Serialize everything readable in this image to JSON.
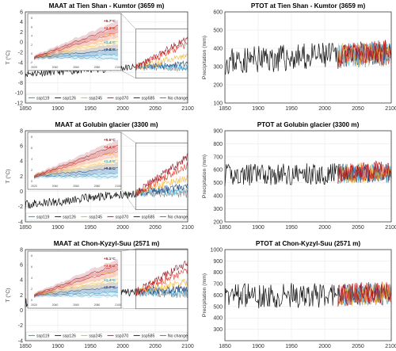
{
  "figure": {
    "panel_count": 6
  },
  "chart_data": [
    {
      "type": "line",
      "title": "MAAT at Tien Shan - Kumtor (3659 m)",
      "xlabel": "",
      "ylabel": "T (°C)",
      "xlim": [
        1850,
        2100
      ],
      "ylim": [
        -12,
        6
      ],
      "xticks": [
        1850,
        1900,
        1950,
        2000,
        2050,
        2100
      ],
      "yticks": [
        -12,
        -10,
        -8,
        -6,
        -4,
        -2,
        0,
        2,
        4,
        6
      ],
      "grid": true,
      "observed": {
        "start": 1850,
        "end": 2020,
        "level_start": -6.2,
        "level_end": -4.9,
        "variability": 0.7,
        "seed": 11
      },
      "series": [
        {
          "name": "ssp119",
          "color": "#29abe2",
          "end_value": -4.9
        },
        {
          "name": "ssp126",
          "color": "#1f3b73",
          "end_value": -4.3
        },
        {
          "name": "ssp245",
          "color": "#f7b731",
          "end_value": -2.6
        },
        {
          "name": "ssp370",
          "color": "#e0301e",
          "end_value": -0.4
        },
        {
          "name": "ssp585",
          "color": "#9b111e",
          "end_value": 0.8
        },
        {
          "name": "No change",
          "color": "#7d7d7d",
          "end_value": -5.2
        }
      ],
      "inset": {
        "annotations": [
          "+5.7°C",
          "+4.2°C",
          "+2.6°C",
          "+1.4°C",
          "+0.8°C"
        ],
        "annotation_colors": [
          "#9b111e",
          "#e0301e",
          "#f7b731",
          "#29abe2",
          "#1f3b73"
        ],
        "xticks": [
          "2020",
          "2040",
          "2060",
          "2080",
          "2100"
        ],
        "yticks": [
          "8",
          "6",
          "4",
          "2",
          "0",
          "-2"
        ],
        "ylabel": "T (°C)"
      },
      "legend_placement": "bottom"
    },
    {
      "type": "line",
      "title": "PTOT at Tien Shan - Kumtor (3659 m)",
      "xlabel": "",
      "ylabel": "Precipitation (mm)",
      "xlim": [
        1850,
        2100
      ],
      "ylim": [
        100,
        600
      ],
      "xticks": [
        1850,
        1900,
        1950,
        2000,
        2050,
        2100
      ],
      "yticks": [
        100,
        200,
        300,
        400,
        500,
        600
      ],
      "grid": true,
      "observed": {
        "start": 1850,
        "end": 2020,
        "level_start": 330,
        "level_end": 360,
        "variability": 75,
        "seed": 23
      },
      "series": [
        {
          "name": "ssp119",
          "color": "#29abe2",
          "end_value": 370
        },
        {
          "name": "ssp126",
          "color": "#1f3b73",
          "end_value": 370
        },
        {
          "name": "ssp245",
          "color": "#f7b731",
          "end_value": 375
        },
        {
          "name": "ssp370",
          "color": "#e0301e",
          "end_value": 380
        },
        {
          "name": "ssp585",
          "color": "#9b111e",
          "end_value": 385
        },
        {
          "name": "No change",
          "color": "#7d7d7d",
          "end_value": 365
        }
      ]
    },
    {
      "type": "line",
      "title": "MAAT at Golubin glacier (3300 m)",
      "xlabel": "",
      "ylabel": "T (°C)",
      "xlim": [
        1850,
        2100
      ],
      "ylim": [
        -4,
        8
      ],
      "xticks": [
        1850,
        1900,
        1950,
        2000,
        2050,
        2100
      ],
      "yticks": [
        -4,
        -2,
        0,
        2,
        4,
        6,
        8
      ],
      "grid": true,
      "observed": {
        "start": 1850,
        "end": 2020,
        "level_start": -1.8,
        "level_end": -0.2,
        "variability": 0.6,
        "seed": 37
      },
      "series": [
        {
          "name": "ssp119",
          "color": "#29abe2",
          "end_value": 0.2
        },
        {
          "name": "ssp126",
          "color": "#1f3b73",
          "end_value": 0.6
        },
        {
          "name": "ssp245",
          "color": "#f7b731",
          "end_value": 1.8
        },
        {
          "name": "ssp370",
          "color": "#e0301e",
          "end_value": 3.5
        },
        {
          "name": "ssp585",
          "color": "#9b111e",
          "end_value": 4.6
        },
        {
          "name": "No change",
          "color": "#7d7d7d",
          "end_value": -0.3
        }
      ],
      "inset": {
        "annotations": [
          "+5.5°C",
          "+4.4°C",
          "+2.8°C",
          "+1.4°C",
          "+0.8°C"
        ],
        "annotation_colors": [
          "#9b111e",
          "#e0301e",
          "#f7b731",
          "#29abe2",
          "#1f3b73"
        ],
        "xticks": [
          "2020",
          "2040",
          "2060",
          "2080",
          "2100"
        ],
        "yticks": [
          "8",
          "6",
          "4",
          "2",
          "0"
        ],
        "ylabel": "T (°C)"
      },
      "legend_placement": "bottom"
    },
    {
      "type": "line",
      "title": "PTOT at Golubin glacier (3300 m)",
      "xlabel": "",
      "ylabel": "Precipitation (mm)",
      "xlim": [
        1850,
        2100
      ],
      "ylim": [
        200,
        900
      ],
      "xticks": [
        1850,
        1900,
        1950,
        2000,
        2050,
        2100
      ],
      "yticks": [
        200,
        300,
        400,
        500,
        600,
        700,
        800,
        900
      ],
      "grid": true,
      "observed": {
        "start": 1850,
        "end": 2020,
        "level_start": 560,
        "level_end": 570,
        "variability": 85,
        "seed": 41
      },
      "series": [
        {
          "name": "ssp119",
          "color": "#29abe2",
          "end_value": 575
        },
        {
          "name": "ssp126",
          "color": "#1f3b73",
          "end_value": 575
        },
        {
          "name": "ssp245",
          "color": "#f7b731",
          "end_value": 580
        },
        {
          "name": "ssp370",
          "color": "#e0301e",
          "end_value": 590
        },
        {
          "name": "ssp585",
          "color": "#9b111e",
          "end_value": 600
        },
        {
          "name": "No change",
          "color": "#7d7d7d",
          "end_value": 570
        }
      ]
    },
    {
      "type": "line",
      "title": "MAAT at Chon-Kyzyl-Suu (2571 m)",
      "xlabel": "",
      "ylabel": "T (°C)",
      "xlim": [
        1850,
        2100
      ],
      "ylim": [
        -4,
        8
      ],
      "xticks": [
        1850,
        1900,
        1950,
        2000,
        2050,
        2100
      ],
      "yticks": [
        -4,
        -2,
        0,
        2,
        4,
        6,
        8
      ],
      "grid": true,
      "observed": {
        "start": 1850,
        "end": 2020,
        "level_start": 1.0,
        "level_end": 2.4,
        "variability": 0.6,
        "seed": 53
      },
      "series": [
        {
          "name": "ssp119",
          "color": "#29abe2",
          "end_value": 2.4
        },
        {
          "name": "ssp126",
          "color": "#1f3b73",
          "end_value": 2.9
        },
        {
          "name": "ssp245",
          "color": "#f7b731",
          "end_value": 3.8
        },
        {
          "name": "ssp370",
          "color": "#e0301e",
          "end_value": 5.3
        },
        {
          "name": "ssp585",
          "color": "#9b111e",
          "end_value": 6.3
        },
        {
          "name": "No change",
          "color": "#7d7d7d",
          "end_value": 2.1
        }
      ],
      "inset": {
        "annotations": [
          "+5.1°C",
          "+3.8°C",
          "+2.4°C",
          "+1.4°C",
          "+0.7°C"
        ],
        "annotation_colors": [
          "#9b111e",
          "#e0301e",
          "#f7b731",
          "#29abe2",
          "#1f3b73"
        ],
        "xticks": [
          "2020",
          "2040",
          "2060",
          "2080",
          "2100"
        ],
        "yticks": [
          "8",
          "6",
          "4",
          "2",
          "0"
        ],
        "ylabel": "T (°C)"
      },
      "legend_placement": "bottom"
    },
    {
      "type": "line",
      "title": "PTOT at Chon-Kyzyl-Suu (2571 m)",
      "xlabel": "",
      "ylabel": "Precipitation (mm)",
      "xlim": [
        1850,
        2100
      ],
      "ylim": [
        200,
        1000
      ],
      "xticks": [
        1850,
        1900,
        1950,
        2000,
        2050,
        2100
      ],
      "yticks": [
        300,
        400,
        500,
        600,
        700,
        800,
        900,
        1000
      ],
      "grid": true,
      "observed": {
        "start": 1850,
        "end": 2020,
        "level_start": 590,
        "level_end": 600,
        "variability": 110,
        "seed": 67
      },
      "series": [
        {
          "name": "ssp119",
          "color": "#29abe2",
          "end_value": 610
        },
        {
          "name": "ssp126",
          "color": "#1f3b73",
          "end_value": 610
        },
        {
          "name": "ssp245",
          "color": "#f7b731",
          "end_value": 615
        },
        {
          "name": "ssp370",
          "color": "#e0301e",
          "end_value": 625
        },
        {
          "name": "ssp585",
          "color": "#9b111e",
          "end_value": 635
        },
        {
          "name": "No change",
          "color": "#7d7d7d",
          "end_value": 605
        }
      ]
    }
  ]
}
